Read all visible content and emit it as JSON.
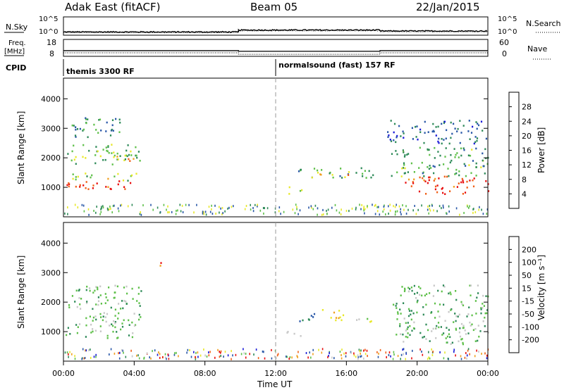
{
  "header": {
    "station": "Adak East (fitACF)",
    "beam": "Beam 05",
    "date": "22/Jan/2015"
  },
  "noise_panel": {
    "left_label": "N.Sky",
    "left_ticks": [
      "10^5",
      "10^0"
    ],
    "right_ticks": [
      "10^5",
      "10^0"
    ],
    "right_label": "N.Search"
  },
  "freq_panel": {
    "left_label_line1": "Freq.",
    "left_label_line2": "[MHz]",
    "left_ticks": [
      "18",
      "8"
    ],
    "right_ticks": [
      "60",
      "0"
    ],
    "right_label": "Nave"
  },
  "cpid_panel": {
    "label": "CPID",
    "modes": [
      {
        "name": "themis 3300 RF",
        "start_hour": 0
      },
      {
        "name": "normalsound (fast) 157 RF",
        "start_hour": 12
      }
    ]
  },
  "power_panel": {
    "ylabel": "Slant Range [km]",
    "yticks": [
      "4000",
      "3000",
      "2000",
      "1000"
    ],
    "colorbar_label": "Power [dB]",
    "colorbar_ticks": [
      "28",
      "24",
      "20",
      "16",
      "12",
      "8",
      "4"
    ],
    "colors": [
      "#1a1ad8",
      "#2a58a8",
      "#2e8a58",
      "#5fc04a",
      "#e8e82a",
      "#f0a020",
      "#f06018",
      "#e81010"
    ]
  },
  "velocity_panel": {
    "ylabel": "Slant Range [km]",
    "yticks": [
      "4000",
      "3000",
      "2000",
      "1000"
    ],
    "colorbar_label": "Velocity [m s⁻¹]",
    "colorbar_ticks": [
      "200",
      "100",
      "50",
      "15",
      "-15",
      "-50",
      "-100",
      "-200"
    ],
    "colors": [
      "#1a1ad8",
      "#2a58a8",
      "#2e8a58",
      "#5fc04a",
      "#c8c8c8",
      "#e8e82a",
      "#f0a020",
      "#f06018",
      "#e81010"
    ]
  },
  "time_axis": {
    "label": "Time UT",
    "ticks": [
      "00:00",
      "04:00",
      "08:00",
      "12:00",
      "16:00",
      "20:00",
      "00:00"
    ]
  },
  "chart_data": {
    "type": "heatmap",
    "title": "Adak East (fitACF)  Beam 05  22/Jan/2015",
    "xlabel": "Time UT",
    "ylabel": "Slant Range [km]",
    "xlim_hours": [
      0,
      24
    ],
    "ylim_km": [
      0,
      4700
    ],
    "noise": {
      "type": "line",
      "scale": "log",
      "range": [
        1,
        100000
      ],
      "sky_levels": [
        {
          "start": 0,
          "end": 9.9,
          "log10": 0.6
        },
        {
          "start": 9.9,
          "end": 17.9,
          "log10": 1.2
        },
        {
          "start": 17.9,
          "end": 24,
          "log10": 0.9
        }
      ]
    },
    "frequency_mhz": [
      {
        "start": 0,
        "end": 9.9,
        "value": 11.2
      },
      {
        "start": 9.9,
        "end": 17.9,
        "value": 10.8
      },
      {
        "start": 17.9,
        "end": 24,
        "value": 11.2
      }
    ],
    "nave": [
      {
        "start": 0,
        "end": 9.9,
        "value": 11
      },
      {
        "start": 9.9,
        "end": 17.9,
        "value": 5
      },
      {
        "start": 17.9,
        "end": 24,
        "value": 11
      }
    ],
    "power_regions": [
      {
        "t": [
          0.1,
          4.0
        ],
        "r": [
          900,
          1250
        ],
        "db": 28
      },
      {
        "t": [
          0.2,
          4.2
        ],
        "r": [
          1250,
          1500
        ],
        "db": 16
      },
      {
        "t": [
          0.2,
          4.4
        ],
        "r": [
          1800,
          2500
        ],
        "db": 14
      },
      {
        "t": [
          0.4,
          3.3
        ],
        "r": [
          2700,
          3400
        ],
        "db": 9
      },
      {
        "t": [
          2.8,
          4.2
        ],
        "r": [
          1900,
          2200
        ],
        "db": 20
      },
      {
        "t": [
          13.2,
          17.6
        ],
        "r": [
          1350,
          1700
        ],
        "db": 12
      },
      {
        "t": [
          14.0,
          16.5
        ],
        "r": [
          1400,
          1550
        ],
        "db": 22
      },
      {
        "t": [
          12.6,
          13.5
        ],
        "r": [
          800,
          1050
        ],
        "db": 16
      },
      {
        "t": [
          19.2,
          24.0
        ],
        "r": [
          800,
          1400
        ],
        "db": 28
      },
      {
        "t": [
          18.5,
          24.0
        ],
        "r": [
          1400,
          2400
        ],
        "db": 12
      },
      {
        "t": [
          18.2,
          24.0
        ],
        "r": [
          2500,
          3300
        ],
        "db": 7
      }
    ],
    "velocity_regions": [
      {
        "t": [
          0.1,
          4.2
        ],
        "r": [
          800,
          1300
        ],
        "v": 0
      },
      {
        "t": [
          0.2,
          4.4
        ],
        "r": [
          1300,
          2600
        ],
        "v": 0
      },
      {
        "t": [
          5.2,
          5.5
        ],
        "r": [
          3100,
          3600
        ],
        "v": -200
      },
      {
        "t": [
          13.2,
          14.6
        ],
        "r": [
          1350,
          1650
        ],
        "v": 60
      },
      {
        "t": [
          14.6,
          15.6
        ],
        "r": [
          1400,
          1800
        ],
        "v": -90
      },
      {
        "t": [
          15.6,
          17.6
        ],
        "r": [
          1350,
          1600
        ],
        "v": -40
      },
      {
        "t": [
          12.6,
          13.5
        ],
        "r": [
          800,
          1050
        ],
        "v": 0
      },
      {
        "t": [
          18.6,
          24.0
        ],
        "r": [
          600,
          2600
        ],
        "v": 0
      }
    ],
    "power_colorbar_db": [
      4,
      8,
      12,
      16,
      20,
      24,
      28
    ],
    "velocity_colorbar_ms": [
      -200,
      -100,
      -50,
      -15,
      15,
      50,
      100,
      200
    ],
    "grid": false
  }
}
